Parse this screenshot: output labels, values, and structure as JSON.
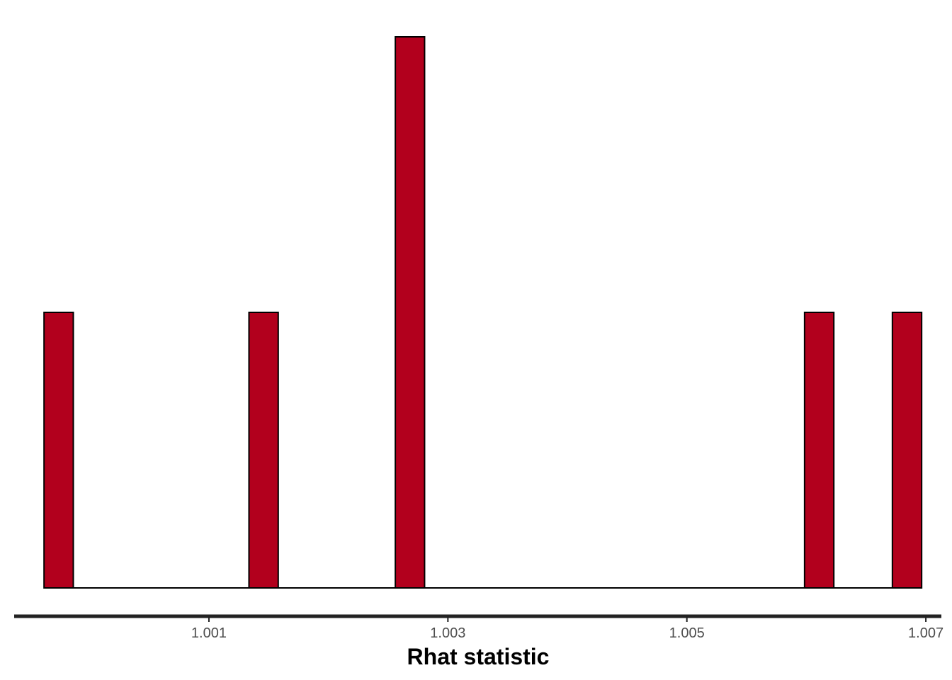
{
  "chart_data": {
    "type": "bar",
    "subtype": "histogram",
    "xlabel": "Rhat statistic",
    "ylabel": "",
    "x_ticks": [
      1.001,
      1.003,
      1.005,
      1.007
    ],
    "x_tick_labels": [
      "1.001",
      "1.003",
      "1.005",
      "1.007"
    ],
    "xlim": [
      0.99937,
      1.00713
    ],
    "ylim": [
      0,
      2
    ],
    "y_axis_shown": false,
    "grid": false,
    "bin_width": 0.000245,
    "bins": [
      {
        "x_start": 0.99962,
        "x_end": 0.999865,
        "count": 1
      },
      {
        "x_start": 1.001335,
        "x_end": 1.00158,
        "count": 1
      },
      {
        "x_start": 1.00256,
        "x_end": 1.002805,
        "count": 2
      },
      {
        "x_start": 1.005985,
        "x_end": 1.00623,
        "count": 1
      },
      {
        "x_start": 1.00672,
        "x_end": 1.006965,
        "count": 1
      }
    ],
    "baseline": {
      "x_start": 0.99962,
      "x_end": 1.006965
    },
    "colors": {
      "fill": "#b2001d",
      "outline": "#000000",
      "axis": "#222222"
    }
  }
}
